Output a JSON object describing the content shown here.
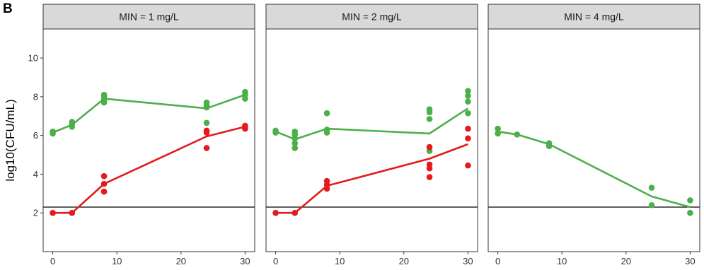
{
  "panel_label": "B",
  "chart_data": {
    "type": "scatter",
    "ylabel": "log10(CFU/mL)",
    "xlabel": "",
    "xlim": [
      -1.5,
      31.5
    ],
    "ylim": [
      0,
      11.5
    ],
    "xticks": [
      0,
      10,
      20,
      30
    ],
    "yticks": [
      2,
      4,
      6,
      8,
      10
    ],
    "grid": false,
    "legend": "none",
    "reference_line_y": 2.3,
    "facets": [
      {
        "label": "MIN = 1 mg/L",
        "series": [
          {
            "color": "#4daf4a",
            "points": [
              [
                0,
                6.1
              ],
              [
                0,
                6.2
              ],
              [
                3,
                6.45
              ],
              [
                3,
                6.6
              ],
              [
                3,
                6.7
              ],
              [
                8,
                7.7
              ],
              [
                8,
                7.85
              ],
              [
                8,
                8.0
              ],
              [
                8,
                8.1
              ],
              [
                24,
                6.65
              ],
              [
                24,
                7.45
              ],
              [
                24,
                7.55
              ],
              [
                24,
                7.7
              ],
              [
                30,
                7.9
              ],
              [
                30,
                8.1
              ],
              [
                30,
                8.25
              ]
            ],
            "line": [
              [
                0,
                6.15
              ],
              [
                3,
                6.55
              ],
              [
                8,
                7.9
              ],
              [
                24,
                7.4
              ],
              [
                30,
                8.1
              ]
            ]
          },
          {
            "color": "#e41a1c",
            "points": [
              [
                0,
                2.0
              ],
              [
                3,
                2.0
              ],
              [
                8,
                3.1
              ],
              [
                8,
                3.5
              ],
              [
                8,
                3.9
              ],
              [
                24,
                5.35
              ],
              [
                24,
                6.15
              ],
              [
                24,
                6.25
              ],
              [
                30,
                6.35
              ],
              [
                30,
                6.5
              ]
            ],
            "line": [
              [
                0,
                2.0
              ],
              [
                3,
                2.0
              ],
              [
                8,
                3.5
              ],
              [
                24,
                5.95
              ],
              [
                30,
                6.45
              ]
            ]
          }
        ]
      },
      {
        "label": "MIN = 2 mg/L",
        "series": [
          {
            "color": "#4daf4a",
            "points": [
              [
                0,
                6.15
              ],
              [
                0,
                6.25
              ],
              [
                3,
                5.35
              ],
              [
                3,
                5.6
              ],
              [
                3,
                5.85
              ],
              [
                3,
                6.05
              ],
              [
                3,
                6.2
              ],
              [
                8,
                6.15
              ],
              [
                8,
                6.3
              ],
              [
                8,
                7.15
              ],
              [
                24,
                5.2
              ],
              [
                24,
                6.85
              ],
              [
                24,
                7.2
              ],
              [
                24,
                7.35
              ],
              [
                30,
                7.15
              ],
              [
                30,
                7.75
              ],
              [
                30,
                8.05
              ],
              [
                30,
                8.3
              ]
            ],
            "line": [
              [
                0,
                6.2
              ],
              [
                3,
                5.8
              ],
              [
                8,
                6.35
              ],
              [
                24,
                6.1
              ],
              [
                30,
                7.4
              ]
            ]
          },
          {
            "color": "#e41a1c",
            "points": [
              [
                0,
                2.0
              ],
              [
                3,
                2.0
              ],
              [
                8,
                3.25
              ],
              [
                8,
                3.45
              ],
              [
                8,
                3.65
              ],
              [
                24,
                3.85
              ],
              [
                24,
                4.3
              ],
              [
                24,
                4.5
              ],
              [
                24,
                5.4
              ],
              [
                30,
                4.45
              ],
              [
                30,
                5.85
              ],
              [
                30,
                6.35
              ]
            ],
            "line": [
              [
                0,
                2.0
              ],
              [
                3,
                2.0
              ],
              [
                8,
                3.4
              ],
              [
                24,
                4.8
              ],
              [
                30,
                5.55
              ]
            ]
          }
        ]
      },
      {
        "label": "MIN = 4 mg/L",
        "series": [
          {
            "color": "#4daf4a",
            "points": [
              [
                0,
                6.1
              ],
              [
                0,
                6.35
              ],
              [
                3,
                6.05
              ],
              [
                8,
                5.45
              ],
              [
                8,
                5.6
              ],
              [
                24,
                2.4
              ],
              [
                24,
                3.3
              ],
              [
                30,
                2.0
              ],
              [
                30,
                2.65
              ]
            ],
            "line": [
              [
                0,
                6.2
              ],
              [
                3,
                6.05
              ],
              [
                8,
                5.55
              ],
              [
                24,
                2.85
              ],
              [
                30,
                2.3
              ]
            ]
          }
        ]
      }
    ]
  }
}
